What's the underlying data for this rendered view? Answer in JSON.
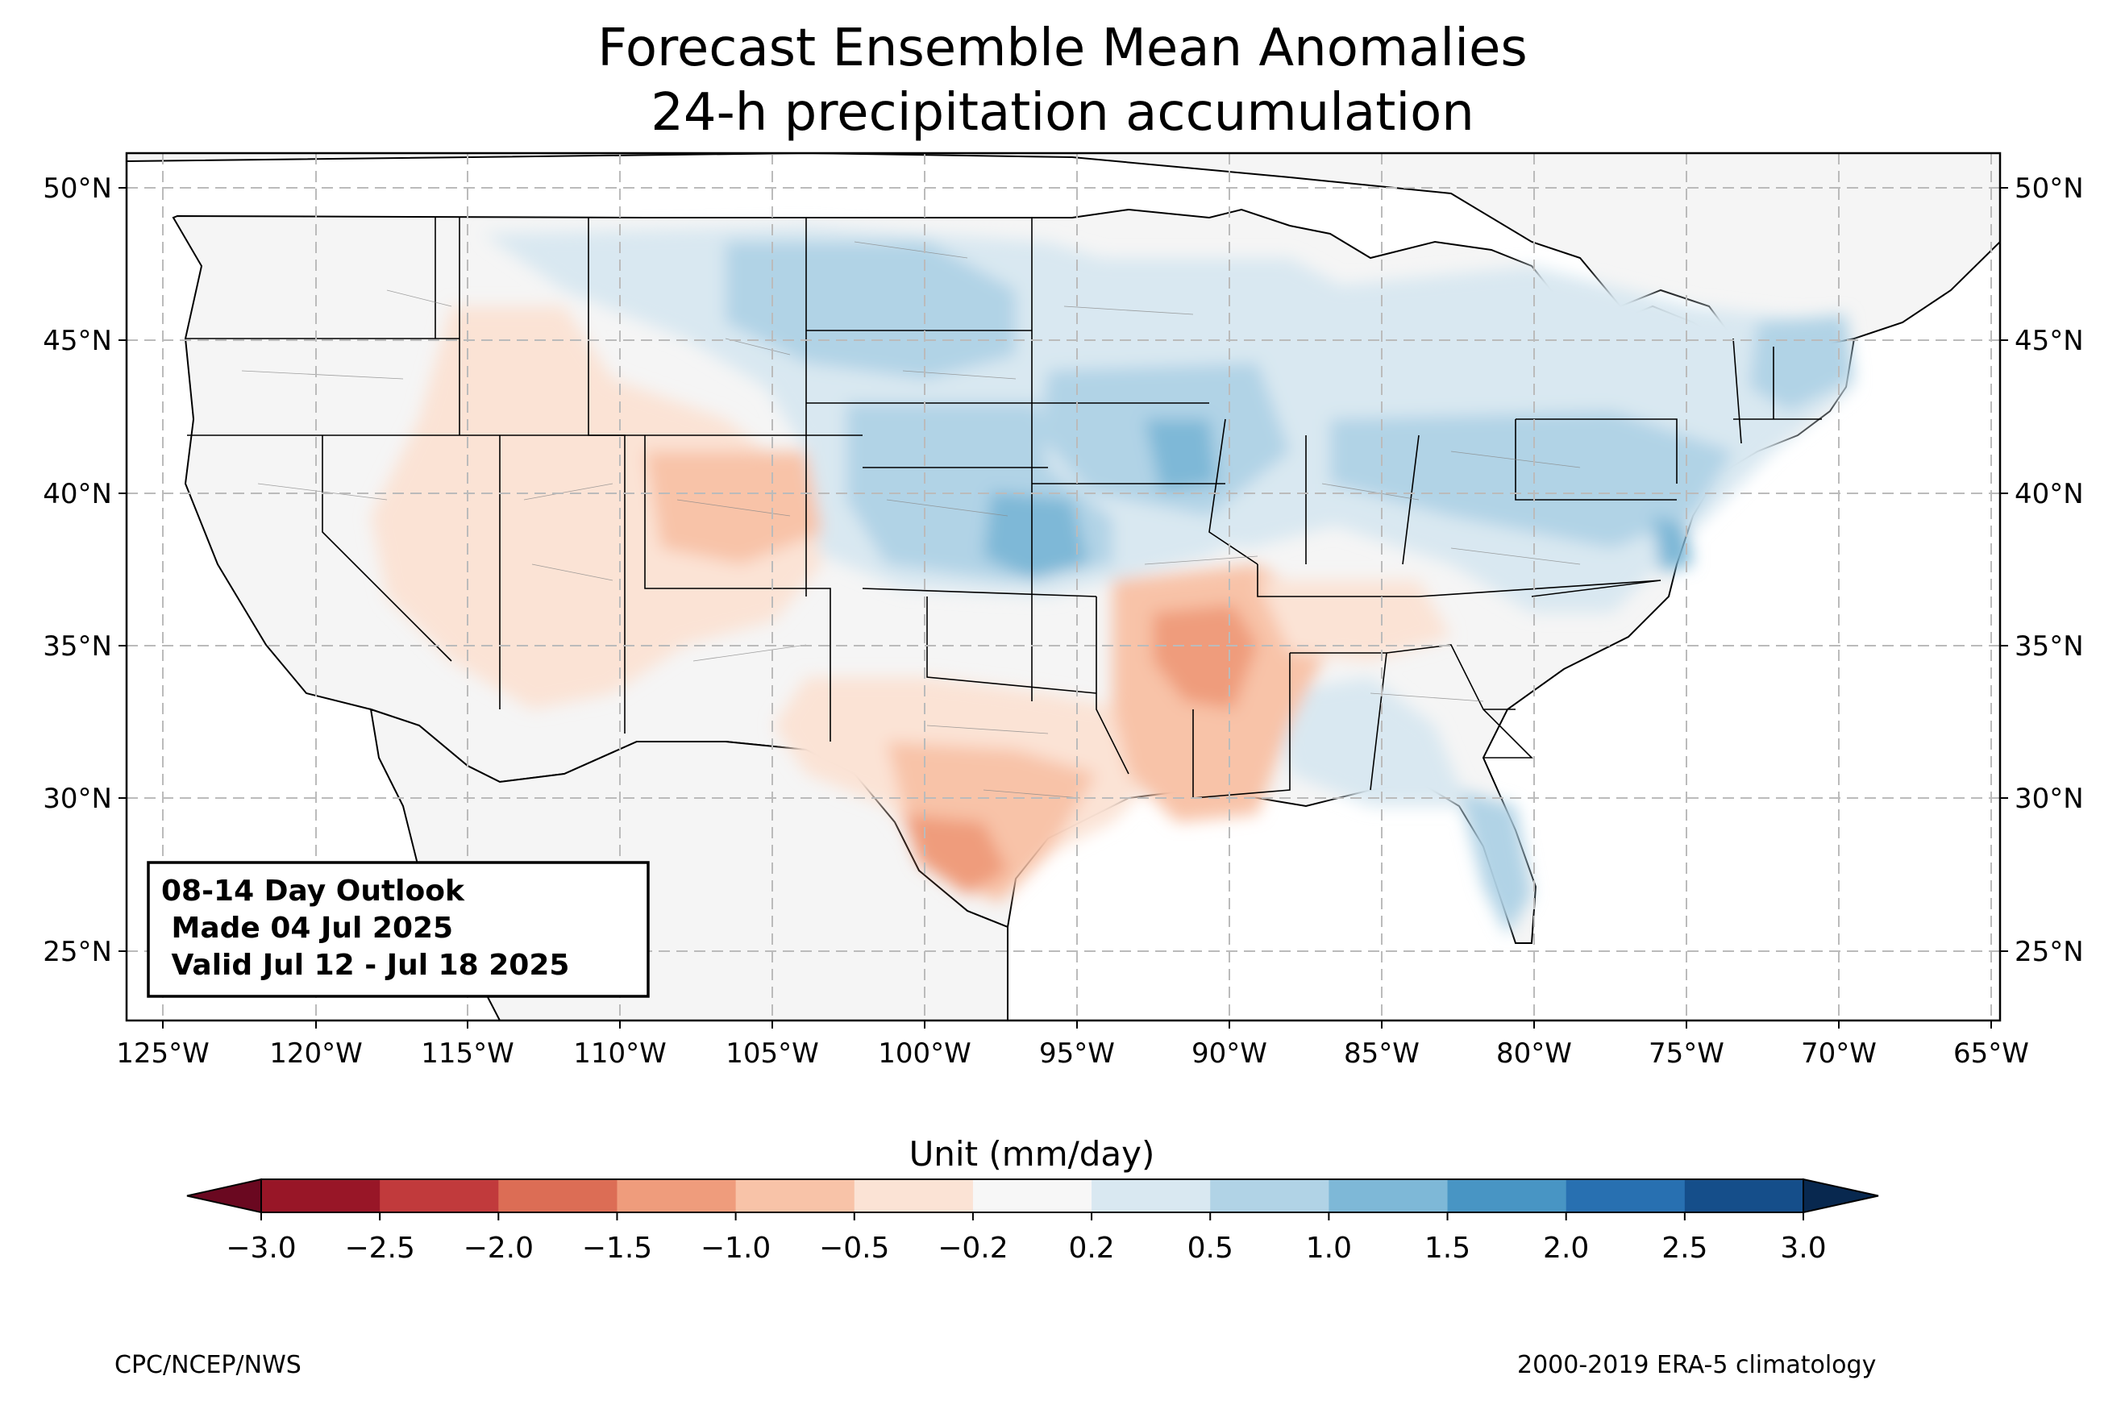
{
  "title_line1": "Forecast Ensemble Mean Anomalies",
  "title_line2": "24-h precipitation accumulation",
  "outlook": {
    "line1": "08-14 Day Outlook",
    "line2": " Made 04 Jul 2025",
    "line3": " Valid Jul 12 - Jul 18 2025"
  },
  "map": {
    "lat_ticks": [
      "50°N",
      "45°N",
      "40°N",
      "35°N",
      "30°N",
      "25°N"
    ],
    "lon_ticks": [
      "125°W",
      "120°W",
      "115°W",
      "110°W",
      "105°W",
      "100°W",
      "95°W",
      "90°W",
      "85°W",
      "80°W",
      "75°W",
      "70°W",
      "65°W"
    ],
    "land_color": "#f5f5f5",
    "grid": true
  },
  "colorbar": {
    "label": "Unit (mm/day)",
    "ticks": [
      "−3.0",
      "−2.5",
      "−2.0",
      "−1.5",
      "−1.0",
      "−0.5",
      "−0.2",
      "0.2",
      "0.5",
      "1.0",
      "1.5",
      "2.0",
      "2.5",
      "3.0"
    ],
    "colors": [
      "#981627",
      "#c13a3c",
      "#dc6d55",
      "#ef9c7c",
      "#f8c3a8",
      "#fbe3d5",
      "#f7f7f7",
      "#d9e8f1",
      "#b1d3e6",
      "#7eb8d7",
      "#4895c4",
      "#2870b1",
      "#154e8a"
    ],
    "under_color": "#6a0820",
    "over_color": "#08284f"
  },
  "footer": {
    "left": "CPC/NCEP/NWS",
    "right": "2000-2019 ERA-5 climatology"
  }
}
